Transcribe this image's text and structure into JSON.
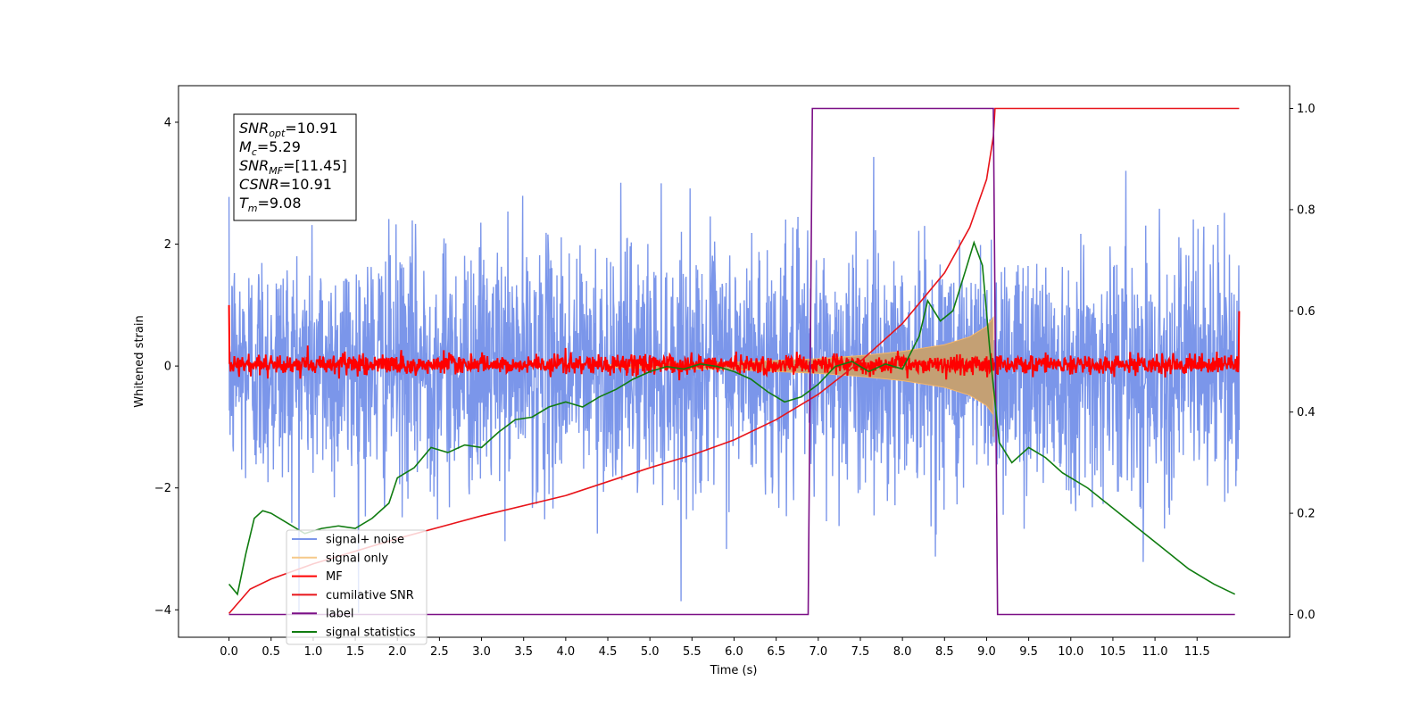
{
  "chart_data": {
    "type": "line",
    "title": "",
    "xlabel": "Time (s)",
    "ylabel": "Whitened strain",
    "y2label": "",
    "xlim": [
      -0.6,
      12.6
    ],
    "ylim": [
      -4.45,
      4.6
    ],
    "y2lim": [
      -0.045,
      1.045
    ],
    "xticks": [
      0.0,
      0.5,
      1.0,
      1.5,
      2.0,
      2.5,
      3.0,
      3.5,
      4.0,
      4.5,
      5.0,
      5.5,
      6.0,
      6.5,
      7.0,
      7.5,
      8.0,
      8.5,
      9.0,
      9.5,
      10.0,
      10.5,
      11.0,
      11.5
    ],
    "xtick_labels": [
      "0.0",
      "0.5",
      "1.0",
      "1.5",
      "2.0",
      "2.5",
      "3.0",
      "3.5",
      "4.0",
      "4.5",
      "5.0",
      "5.5",
      "6.0",
      "6.5",
      "7.0",
      "7.5",
      "8.0",
      "8.5",
      "9.0",
      "9.5",
      "10.0",
      "10.5",
      "11.0",
      "11.5"
    ],
    "yticks": [
      -4,
      -2,
      0,
      2,
      4
    ],
    "ytick_labels": [
      "−4",
      "−2",
      "0",
      "2",
      "4"
    ],
    "y2ticks": [
      0.0,
      0.2,
      0.4,
      0.6,
      0.8,
      1.0
    ],
    "y2tick_labels": [
      "0.0",
      "0.2",
      "0.4",
      "0.6",
      "0.8",
      "1.0"
    ],
    "grid": false,
    "legend_position": "lower-left",
    "annotation": [
      {
        "var": "SNR",
        "sub": "opt",
        "text": "=10.91"
      },
      {
        "var": "M",
        "sub": "c",
        "text": "=5.29"
      },
      {
        "var": "SNR",
        "sub": "MF",
        "text": "=[11.45]"
      },
      {
        "var": "CSNR",
        "sub": "",
        "text": "=10.91"
      },
      {
        "var": "T",
        "sub": "m",
        "text": "=9.08"
      }
    ],
    "series": [
      {
        "name": "signal+ noise",
        "color": "#7b96ea",
        "axis": "left",
        "kind": "noise",
        "sigma": 1.0,
        "t_start": 0.0,
        "t_end": 12.0
      },
      {
        "name": "signal only",
        "color": "#f5b66b",
        "axis": "left",
        "kind": "chirp_envelope",
        "envelope": {
          "t": [
            4.5,
            6.0,
            7.0,
            7.5,
            8.0,
            8.5,
            8.8,
            9.0,
            9.08
          ],
          "amp": [
            0.02,
            0.06,
            0.12,
            0.17,
            0.24,
            0.35,
            0.48,
            0.65,
            0.8
          ]
        }
      },
      {
        "name": "MF",
        "color": "#ff0000",
        "axis": "left",
        "kind": "mf_noise",
        "sigma": 0.08,
        "edge_values": [
          1.0,
          0.9
        ]
      },
      {
        "name": "cumilative SNR",
        "color": "#e8141a",
        "axis": "right",
        "x": [
          0.0,
          0.25,
          0.5,
          1.0,
          1.5,
          2.0,
          3.0,
          4.0,
          5.0,
          5.5,
          6.0,
          6.5,
          7.0,
          7.5,
          8.0,
          8.5,
          8.8,
          9.0,
          9.08,
          9.1,
          12.0
        ],
        "values": [
          0.002,
          0.05,
          0.07,
          0.1,
          0.125,
          0.15,
          0.195,
          0.235,
          0.29,
          0.315,
          0.345,
          0.385,
          0.435,
          0.5,
          0.575,
          0.675,
          0.765,
          0.86,
          0.945,
          1.0,
          1.0
        ]
      },
      {
        "name": "label",
        "color": "#7b0f86",
        "axis": "right",
        "x": [
          0.0,
          6.88,
          6.93,
          9.08,
          9.13,
          11.95
        ],
        "values": [
          0.0,
          0.0,
          1.0,
          1.0,
          0.0,
          0.0
        ]
      },
      {
        "name": "signal statistics",
        "color": "#107c10",
        "axis": "right",
        "x": [
          0.0,
          0.1,
          0.2,
          0.3,
          0.4,
          0.5,
          0.7,
          0.9,
          1.1,
          1.3,
          1.5,
          1.7,
          1.9,
          2.0,
          2.2,
          2.4,
          2.6,
          2.8,
          3.0,
          3.2,
          3.4,
          3.6,
          3.8,
          4.0,
          4.2,
          4.4,
          4.6,
          4.8,
          5.0,
          5.2,
          5.4,
          5.6,
          5.8,
          6.0,
          6.2,
          6.4,
          6.6,
          6.8,
          7.0,
          7.2,
          7.4,
          7.6,
          7.8,
          8.0,
          8.2,
          8.3,
          8.45,
          8.6,
          8.75,
          8.85,
          8.95,
          9.05,
          9.15,
          9.3,
          9.5,
          9.7,
          9.9,
          10.2,
          10.5,
          10.8,
          11.1,
          11.4,
          11.7,
          11.95
        ],
        "values": [
          0.06,
          0.04,
          0.12,
          0.19,
          0.205,
          0.2,
          0.18,
          0.16,
          0.17,
          0.175,
          0.17,
          0.19,
          0.22,
          0.27,
          0.29,
          0.33,
          0.32,
          0.335,
          0.33,
          0.36,
          0.385,
          0.39,
          0.41,
          0.42,
          0.41,
          0.43,
          0.445,
          0.465,
          0.48,
          0.49,
          0.485,
          0.495,
          0.49,
          0.48,
          0.465,
          0.44,
          0.42,
          0.43,
          0.455,
          0.49,
          0.5,
          0.48,
          0.495,
          0.485,
          0.55,
          0.62,
          0.58,
          0.6,
          0.68,
          0.735,
          0.69,
          0.5,
          0.34,
          0.3,
          0.33,
          0.31,
          0.28,
          0.25,
          0.21,
          0.17,
          0.13,
          0.09,
          0.06,
          0.04
        ]
      }
    ]
  }
}
